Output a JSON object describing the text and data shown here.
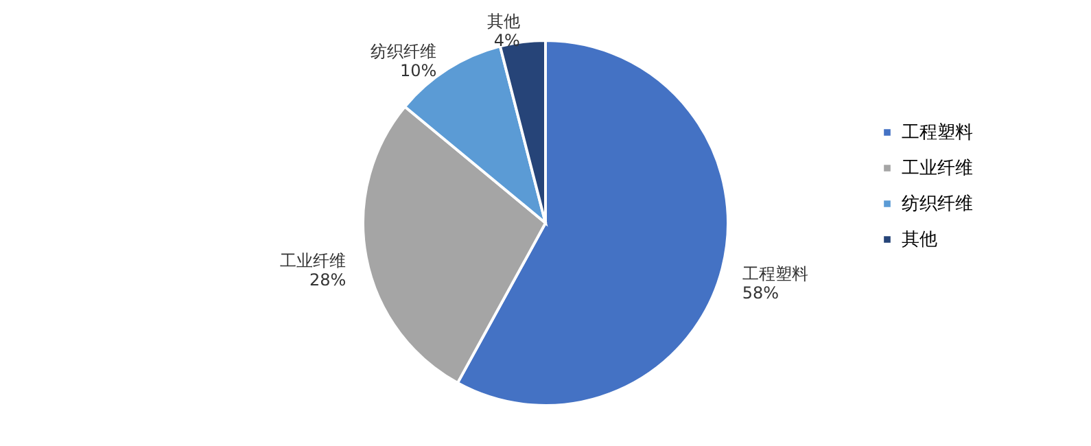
{
  "chart_data": {
    "type": "pie",
    "categories": [
      "工程塑料",
      "工业纤维",
      "纺织纤维",
      "其他"
    ],
    "values": [
      58,
      28,
      10,
      4
    ],
    "value_labels": [
      "58%",
      "28%",
      "10%",
      "4%"
    ],
    "colors": [
      "#4472c4",
      "#a5a5a5",
      "#5b9bd5",
      "#264478"
    ],
    "legend": "right"
  }
}
